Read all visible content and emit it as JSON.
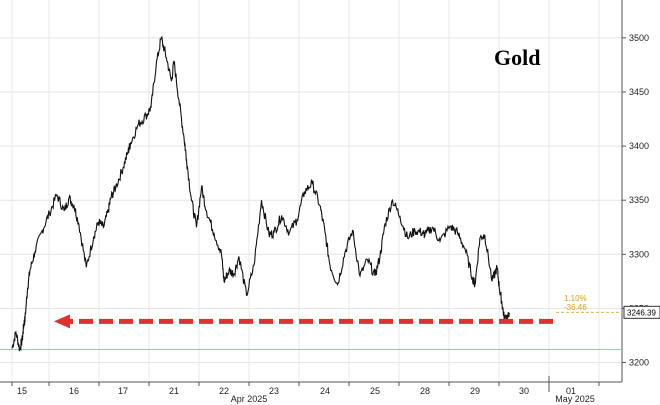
{
  "chart_data": {
    "type": "line",
    "title": "Gold",
    "x_tick_labels": [
      "15",
      "16",
      "17",
      "21",
      "22",
      "23",
      "24",
      "25",
      "28",
      "29",
      "30",
      "01"
    ],
    "x_month_labels": [
      "Apr 2025",
      "May 2025"
    ],
    "y_ticks": [
      3200,
      3250,
      3300,
      3350,
      3400,
      3450,
      3500
    ],
    "y_tick_labels": [
      "3200",
      "3250",
      "3300",
      "3350",
      "3400",
      "3450",
      "3500"
    ],
    "ylim": [
      3182,
      3535
    ],
    "grid": true,
    "series": [
      {
        "x": [
          0.0,
          0.3,
          0.6,
          0.8,
          0.9,
          1.0,
          1.05,
          1.1,
          1.2,
          1.35,
          1.5,
          1.65,
          1.8,
          1.9,
          2.0,
          2.1,
          2.25,
          2.4,
          2.5,
          2.6,
          2.7,
          2.75,
          2.85,
          3.0,
          3.1,
          3.15,
          3.3,
          3.45,
          3.55,
          3.65,
          3.75,
          3.85,
          3.95,
          4.0,
          4.1,
          4.2,
          4.25,
          4.35,
          4.45,
          4.55,
          4.65,
          4.8,
          4.95,
          5.0,
          5.1,
          5.2,
          5.3,
          5.45,
          5.6,
          5.75,
          5.9,
          6.0,
          6.15,
          6.3,
          6.45,
          6.6,
          6.75,
          6.9,
          7.0,
          7.1,
          7.25,
          7.4,
          7.55,
          7.7,
          7.85,
          8.0,
          8.1,
          8.2,
          8.35,
          8.5,
          8.65,
          8.8,
          8.95,
          9.0,
          9.15,
          9.3,
          9.5,
          9.65,
          9.8,
          9.95,
          10.0,
          10.1,
          10.2,
          10.35,
          10.45,
          10.5,
          10.55,
          10.6,
          10.7
        ],
        "values": [
          3213,
          3228,
          3212,
          3222,
          3235,
          3240,
          3268,
          3285,
          3302,
          3322,
          3338,
          3355,
          3340,
          3352,
          3345,
          3328,
          3288,
          3316,
          3330,
          3325,
          3340,
          3352,
          3362,
          3380,
          3395,
          3403,
          3420,
          3428,
          3436,
          3475,
          3500,
          3482,
          3460,
          3478,
          3442,
          3408,
          3388,
          3350,
          3325,
          3362,
          3340,
          3320,
          3300,
          3275,
          3285,
          3282,
          3298,
          3262,
          3290,
          3350,
          3318,
          3320,
          3336,
          3320,
          3332,
          3358,
          3366,
          3345,
          3320,
          3290,
          3272,
          3302,
          3322,
          3280,
          3295,
          3280,
          3298,
          3328,
          3350,
          3335,
          3315,
          3322,
          3320,
          3318,
          3325,
          3312,
          3326,
          3320,
          3305,
          3278,
          3272,
          3315,
          3318,
          3275,
          3288,
          3268,
          3255,
          3240,
          3246
        ]
      }
    ],
    "last_value_label": "3246.39",
    "change_pct_label": "1.10%",
    "change_abs_label": "-36.46",
    "reference_line_value": 3212,
    "arrow_level_value": 3238
  }
}
